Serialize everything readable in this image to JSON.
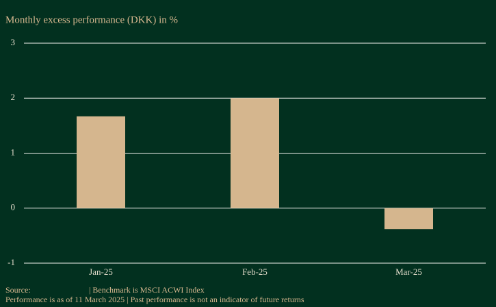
{
  "chart_data": {
    "type": "bar",
    "title": "Monthly excess performance (DKK) in %",
    "categories": [
      "Jan-25",
      "Feb-25",
      "Mar-25"
    ],
    "values": [
      1.67,
      2.0,
      -0.38
    ],
    "color": "#d5b68e",
    "ylim": [
      -1,
      3
    ],
    "yticks": [
      -1,
      0,
      1,
      2,
      3
    ],
    "grid": true,
    "source": "Source:",
    "benchmark": "|  Benchmark is MSCI ACWI Index",
    "disclaimer": "Performance is as of 11 March 2025  |  Past performance is not an indicator of future returns"
  }
}
